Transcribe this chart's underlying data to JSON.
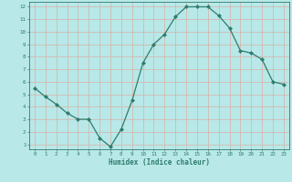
{
  "x": [
    0,
    1,
    2,
    3,
    4,
    5,
    6,
    7,
    8,
    9,
    10,
    11,
    12,
    13,
    14,
    15,
    16,
    17,
    18,
    19,
    20,
    21,
    22,
    23
  ],
  "y": [
    5.5,
    4.8,
    4.2,
    3.5,
    3.0,
    3.0,
    1.5,
    0.8,
    2.2,
    4.5,
    7.5,
    9.0,
    9.8,
    11.2,
    12.0,
    12.0,
    12.0,
    11.3,
    10.3,
    8.5,
    8.3,
    7.8,
    6.0,
    5.8
  ],
  "xlabel": "Humidex (Indice chaleur)",
  "ylim": [
    0.6,
    12.4
  ],
  "xlim": [
    -0.5,
    23.5
  ],
  "line_color": "#2e7d6e",
  "marker_color": "#2e7d6e",
  "bg_color": "#b8e8e8",
  "grid_color": "#d8b0a8",
  "tick_color": "#2e7d6e",
  "label_color": "#2e7d6e",
  "yticks": [
    1,
    2,
    3,
    4,
    5,
    6,
    7,
    8,
    9,
    10,
    11,
    12
  ],
  "xticks": [
    0,
    1,
    2,
    3,
    4,
    5,
    6,
    7,
    8,
    9,
    10,
    11,
    12,
    13,
    14,
    15,
    16,
    17,
    18,
    19,
    20,
    21,
    22,
    23
  ]
}
